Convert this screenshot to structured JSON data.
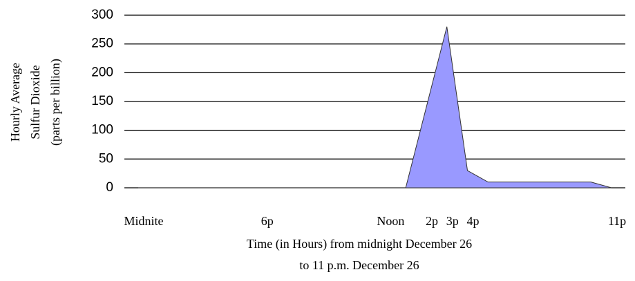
{
  "chart_data": {
    "type": "area",
    "ylabel": [
      "Hourly Average",
      "Sulfur Dioxide",
      "(parts per billion)"
    ],
    "xlabel": [
      "Time (in Hours) from midnight December 26",
      "to 11 p.m. December 26"
    ],
    "categories": [
      "Midnite",
      null,
      null,
      null,
      null,
      null,
      "6p",
      null,
      null,
      null,
      null,
      null,
      "Noon",
      null,
      "2p",
      "3p",
      "4p",
      null,
      null,
      null,
      null,
      null,
      null,
      "11p"
    ],
    "values": [
      0,
      0,
      0,
      0,
      0,
      0,
      0,
      0,
      0,
      0,
      0,
      0,
      0,
      0,
      140,
      280,
      30,
      10,
      10,
      10,
      10,
      10,
      10,
      0
    ],
    "color": "#9999ff",
    "ylim": [
      0,
      300
    ],
    "yticks": [
      0,
      50,
      100,
      150,
      200,
      250,
      300
    ],
    "grid": true
  }
}
